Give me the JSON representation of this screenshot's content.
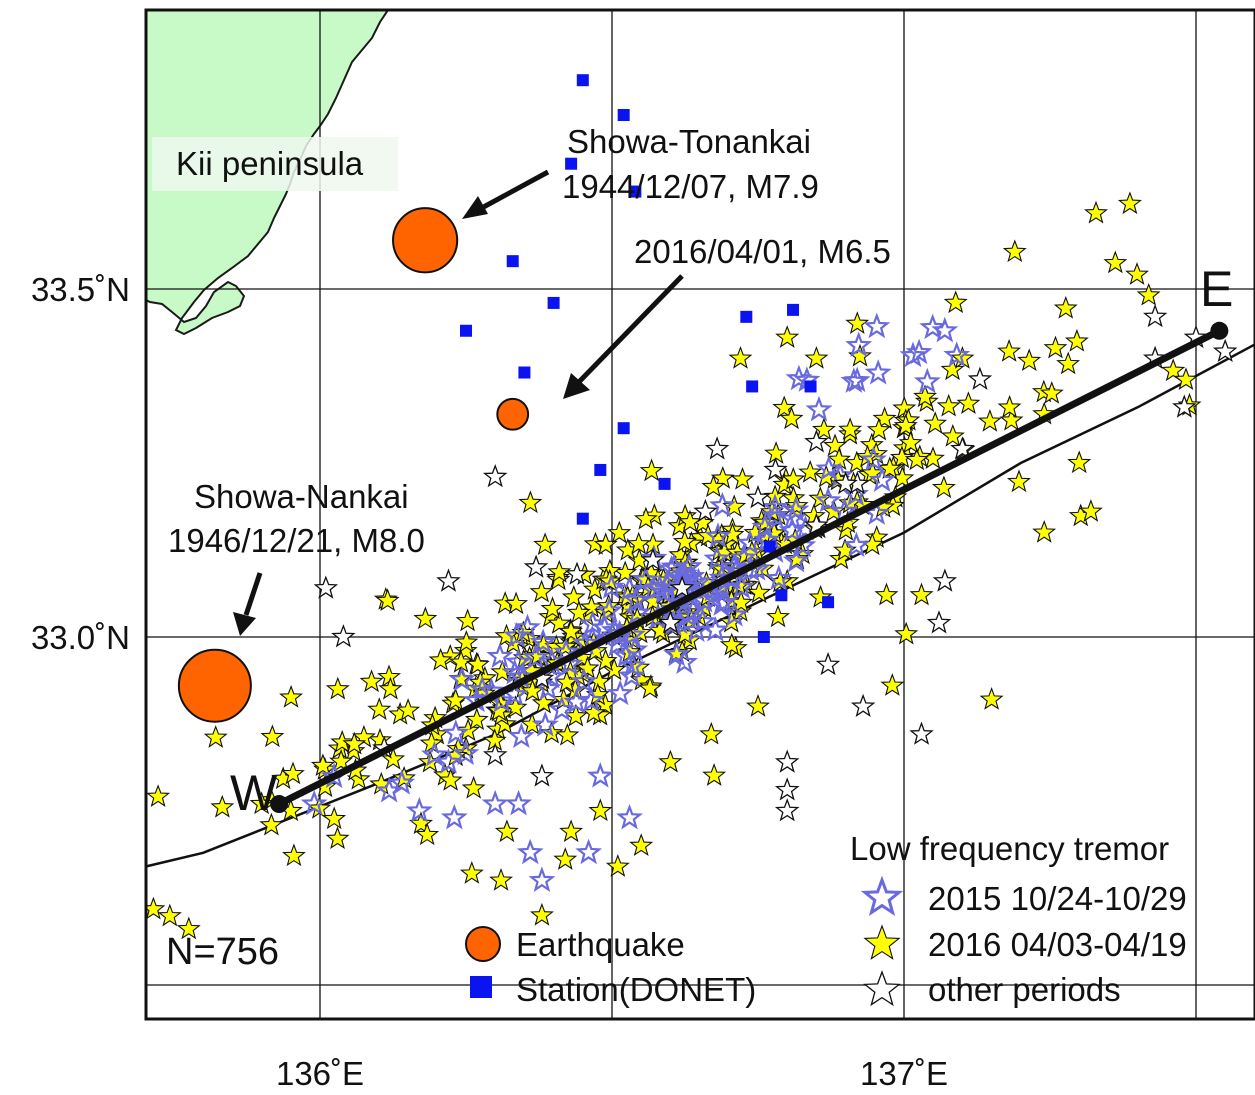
{
  "axes": {
    "x_ticks": [
      {
        "label": "136˚E",
        "value": 136.0
      },
      {
        "label": "137˚E",
        "value": 137.0
      }
    ],
    "y_ticks": [
      {
        "label": "33.5˚N",
        "value": 33.5
      },
      {
        "label": "33.0˚N",
        "value": 33.0
      }
    ],
    "xlim": [
      135.7,
      137.6
    ],
    "ylim": [
      32.5,
      33.9
    ]
  },
  "land_label": "Kii peninsula",
  "earthquakes": [
    {
      "id": "tonankai",
      "lon": 136.18,
      "lat": 33.57,
      "magnitude": 7.9,
      "name": "Showa-Tonankai",
      "date_mag": "1944/12/07, M7.9"
    },
    {
      "id": "m65",
      "lon": 136.33,
      "lat": 33.32,
      "magnitude": 6.5,
      "name": "",
      "date_mag": "2016/04/01, M6.5"
    },
    {
      "id": "nankai",
      "lon": 135.82,
      "lat": 32.93,
      "magnitude": 8.0,
      "name": "Showa-Nankai",
      "date_mag": "1946/12/21, M8.0"
    }
  ],
  "profile": {
    "start": {
      "label": "W",
      "lon": 135.93,
      "lat": 32.76
    },
    "end": {
      "label": "E",
      "lon": 137.54,
      "lat": 33.44
    }
  },
  "count_label": "N=756",
  "legend": {
    "tremor_title": "Low frequency tremor",
    "tremor_items": [
      {
        "label": "2015 10/24-10/29",
        "color": "#6a6ae0",
        "fill": "none"
      },
      {
        "label": "2016 04/03-04/19",
        "color": "#111111",
        "fill": "#ffff00"
      },
      {
        "label": "other periods",
        "color": "#111111",
        "fill": "#ffffff"
      }
    ],
    "earthquake_label": "Earthquake",
    "station_label": "Station(DONET)"
  },
  "colors": {
    "land": "#c8fac8",
    "quake": "#ff6400",
    "station": "#0a14f0",
    "tremor_2015": "#6a6ae0",
    "tremor_2016": "#ffff00",
    "line": "#111111"
  },
  "stations": [
    [
      136.45,
      33.8
    ],
    [
      136.52,
      33.75
    ],
    [
      136.43,
      33.68
    ],
    [
      136.54,
      33.64
    ],
    [
      136.33,
      33.54
    ],
    [
      136.25,
      33.44
    ],
    [
      136.4,
      33.48
    ],
    [
      136.35,
      33.38
    ],
    [
      136.73,
      33.46
    ],
    [
      136.81,
      33.47
    ],
    [
      136.74,
      33.36
    ],
    [
      136.84,
      33.36
    ],
    [
      136.52,
      33.3
    ],
    [
      136.48,
      33.24
    ],
    [
      136.59,
      33.22
    ],
    [
      136.45,
      33.17
    ],
    [
      136.77,
      33.13
    ],
    [
      136.79,
      33.06
    ],
    [
      136.87,
      33.05
    ],
    [
      136.76,
      33.0
    ]
  ],
  "tremors_other": [
    [
      136.3,
      33.23
    ],
    [
      136.01,
      33.07
    ],
    [
      136.04,
      33.0
    ],
    [
      136.22,
      33.08
    ],
    [
      136.37,
      33.1
    ],
    [
      136.44,
      33.09
    ],
    [
      136.6,
      33.02
    ],
    [
      136.38,
      32.8
    ],
    [
      136.8,
      32.82
    ],
    [
      136.8,
      32.78
    ],
    [
      136.8,
      32.75
    ],
    [
      136.87,
      32.96
    ],
    [
      136.93,
      32.9
    ],
    [
      137.03,
      32.86
    ],
    [
      137.06,
      33.02
    ],
    [
      137.07,
      33.08
    ],
    [
      137.1,
      33.27
    ],
    [
      137.13,
      33.37
    ],
    [
      137.43,
      33.46
    ],
    [
      137.43,
      33.4
    ],
    [
      137.5,
      33.43
    ],
    [
      137.55,
      33.41
    ],
    [
      137.48,
      33.33
    ],
    [
      136.92,
      33.22
    ],
    [
      136.85,
      33.16
    ],
    [
      136.9,
      33.22
    ],
    [
      136.75,
      33.2
    ],
    [
      136.78,
      33.24
    ],
    [
      136.85,
      33.28
    ],
    [
      136.68,
      33.27
    ],
    [
      136.38,
      32.94
    ],
    [
      136.3,
      32.83
    ],
    [
      136.11,
      32.84
    ],
    [
      136.57,
      33.11
    ],
    [
      136.62,
      33.07
    ],
    [
      136.66,
      33.18
    ]
  ],
  "tremor_clusters": {
    "y2016_core": {
      "center": [
        136.57,
        33.05
      ],
      "count": 300,
      "spread_along": 0.42,
      "spread_across": 0.07,
      "azimuth_deg": 25
    },
    "y2016_wide": {
      "center": [
        136.72,
        33.14
      ],
      "count": 90,
      "spread_along": 0.75,
      "spread_across": 0.14,
      "azimuth_deg": 25
    },
    "y2015_core": {
      "center": [
        136.55,
        33.03
      ],
      "count": 120,
      "spread_along": 0.3,
      "spread_across": 0.06,
      "azimuth_deg": 25
    },
    "y2015_nw": {
      "center": [
        136.98,
        33.4
      ],
      "count": 14,
      "spread_along": 0.12,
      "spread_across": 0.04,
      "azimuth_deg": 10
    }
  },
  "tremors_2016_extra": [
    [
      137.1,
      33.4
    ],
    [
      137.18,
      33.41
    ],
    [
      137.24,
      33.32
    ],
    [
      137.3,
      33.25
    ],
    [
      137.32,
      33.18
    ],
    [
      137.24,
      33.15
    ],
    [
      137.15,
      32.91
    ],
    [
      136.98,
      32.93
    ],
    [
      136.75,
      32.9
    ],
    [
      136.2,
      32.86
    ],
    [
      136.25,
      32.84
    ],
    [
      136.43,
      32.72
    ],
    [
      136.42,
      32.68
    ],
    [
      136.32,
      32.72
    ],
    [
      136.26,
      32.66
    ],
    [
      136.31,
      32.65
    ],
    [
      136.48,
      32.75
    ],
    [
      136.51,
      32.67
    ],
    [
      136.55,
      32.7
    ],
    [
      136.38,
      32.6
    ],
    [
      136.03,
      32.71
    ],
    [
      135.95,
      32.75
    ],
    [
      135.9,
      32.76
    ],
    [
      136.8,
      33.08
    ],
    [
      136.97,
      33.06
    ],
    [
      137.03,
      33.06
    ],
    [
      136.6,
      32.82
    ],
    [
      136.67,
      32.86
    ],
    [
      136.85,
      33.4
    ],
    [
      136.92,
      33.45
    ],
    [
      136.8,
      33.43
    ],
    [
      136.72,
      33.4
    ],
    [
      137.0,
      33.3
    ]
  ],
  "tremors_2015_extra": [
    [
      136.14,
      32.79
    ],
    [
      136.17,
      32.75
    ],
    [
      136.23,
      32.74
    ],
    [
      136.22,
      32.82
    ],
    [
      136.3,
      32.76
    ],
    [
      136.36,
      32.69
    ],
    [
      136.38,
      32.65
    ],
    [
      136.34,
      32.76
    ],
    [
      135.99,
      32.76
    ],
    [
      136.46,
      32.69
    ],
    [
      136.53,
      32.74
    ],
    [
      136.48,
      32.8
    ]
  ],
  "trough_path": [
    [
      135.7,
      32.67
    ],
    [
      135.8,
      32.69
    ],
    [
      135.95,
      32.74
    ],
    [
      136.1,
      32.79
    ],
    [
      136.3,
      32.86
    ],
    [
      136.5,
      32.95
    ],
    [
      136.75,
      33.05
    ],
    [
      137.0,
      33.15
    ],
    [
      137.2,
      33.25
    ],
    [
      137.4,
      33.33
    ],
    [
      137.6,
      33.42
    ]
  ]
}
